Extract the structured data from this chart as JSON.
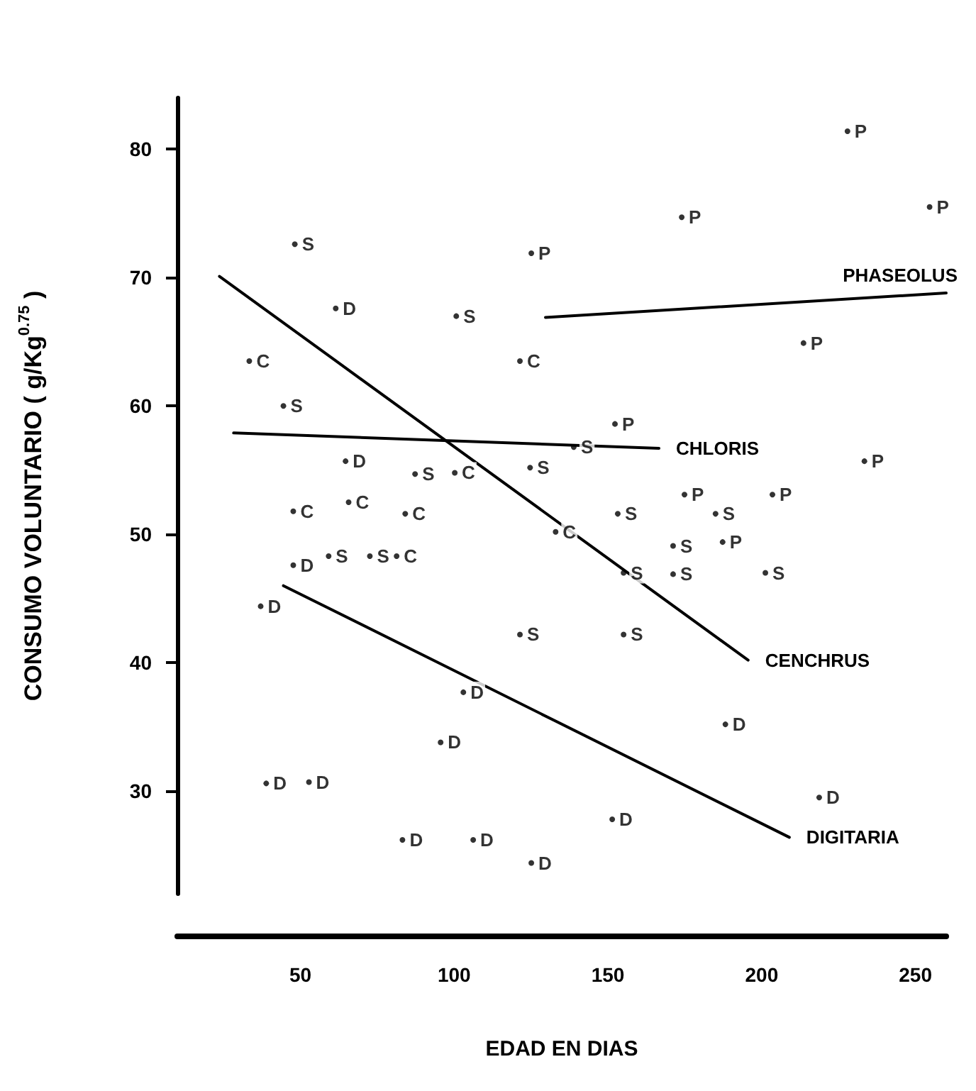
{
  "chart_data": {
    "type": "scatter",
    "xlabel": "EDAD EN DIAS",
    "ylabel": "CONSUMO VOLUNTARIO ( g/Kg$^{0.75}$ )",
    "xlim": [
      10,
      260
    ],
    "xticks": [
      50,
      100,
      150,
      200,
      250
    ],
    "ylim": [
      22,
      84
    ],
    "yticks": [
      30,
      40,
      50,
      60,
      70,
      80
    ],
    "grid": false,
    "legend": false,
    "series": [
      {
        "name": "C",
        "color": "#000000",
        "x": [
          33.4,
          47.7,
          65.7,
          84.1,
          100.2,
          121.4,
          133,
          81.3
        ],
        "values": [
          63.5,
          51.8,
          52.5,
          51.6,
          54.8,
          63.5,
          50.2,
          48.3
        ]
      },
      {
        "name": "D",
        "color": "#000000",
        "x": [
          61.5,
          64.7,
          47.7,
          37.1,
          38.9,
          52.8,
          83.2,
          106.2,
          125.1,
          95.6,
          103,
          151.4,
          188.2,
          218.7
        ],
        "values": [
          67.6,
          55.7,
          47.6,
          44.4,
          30.6,
          30.7,
          26.2,
          26.2,
          24.4,
          33.8,
          37.7,
          27.8,
          35.2,
          29.5
        ]
      },
      {
        "name": "S",
        "color": "#000000",
        "x": [
          48.2,
          44.5,
          87.3,
          100.7,
          124.7,
          138.9,
          121.4,
          155.1,
          153.2,
          155.1,
          171.2,
          171.2,
          185,
          201.2,
          59.2,
          72.6
        ],
        "values": [
          72.6,
          60.0,
          54.7,
          67.0,
          55.2,
          56.8,
          42.2,
          42.2,
          51.6,
          47.0,
          49.1,
          46.9,
          51.6,
          47.0,
          48.3,
          48.3
        ]
      },
      {
        "name": "P",
        "color": "#000000",
        "x": [
          227.9,
          254.6,
          174,
          125.1,
          213.6,
          152.3,
          174.9,
          203.5,
          187.3,
          233.4
        ],
        "values": [
          81.4,
          75.5,
          74.7,
          71.9,
          64.9,
          58.6,
          53.1,
          53.1,
          49.4,
          55.7
        ]
      },
      {
        "type": "line",
        "name": "PHASEOLUS",
        "color": "#000000",
        "x": [
          129.7,
          260
        ],
        "values": [
          66.9,
          68.8
        ]
      },
      {
        "type": "line",
        "name": "CHLORIS",
        "color": "#000000",
        "x": [
          28.3,
          166.6
        ],
        "values": [
          57.9,
          56.7
        ]
      },
      {
        "type": "line",
        "name": "CENCHRUS",
        "color": "#000000",
        "x": [
          23.7,
          195.6
        ],
        "values": [
          70.1,
          40.2
        ]
      },
      {
        "type": "line",
        "name": "DIGITARIA",
        "color": "#000000",
        "x": [
          44.5,
          209
        ],
        "values": [
          46.0,
          26.4
        ]
      }
    ]
  }
}
